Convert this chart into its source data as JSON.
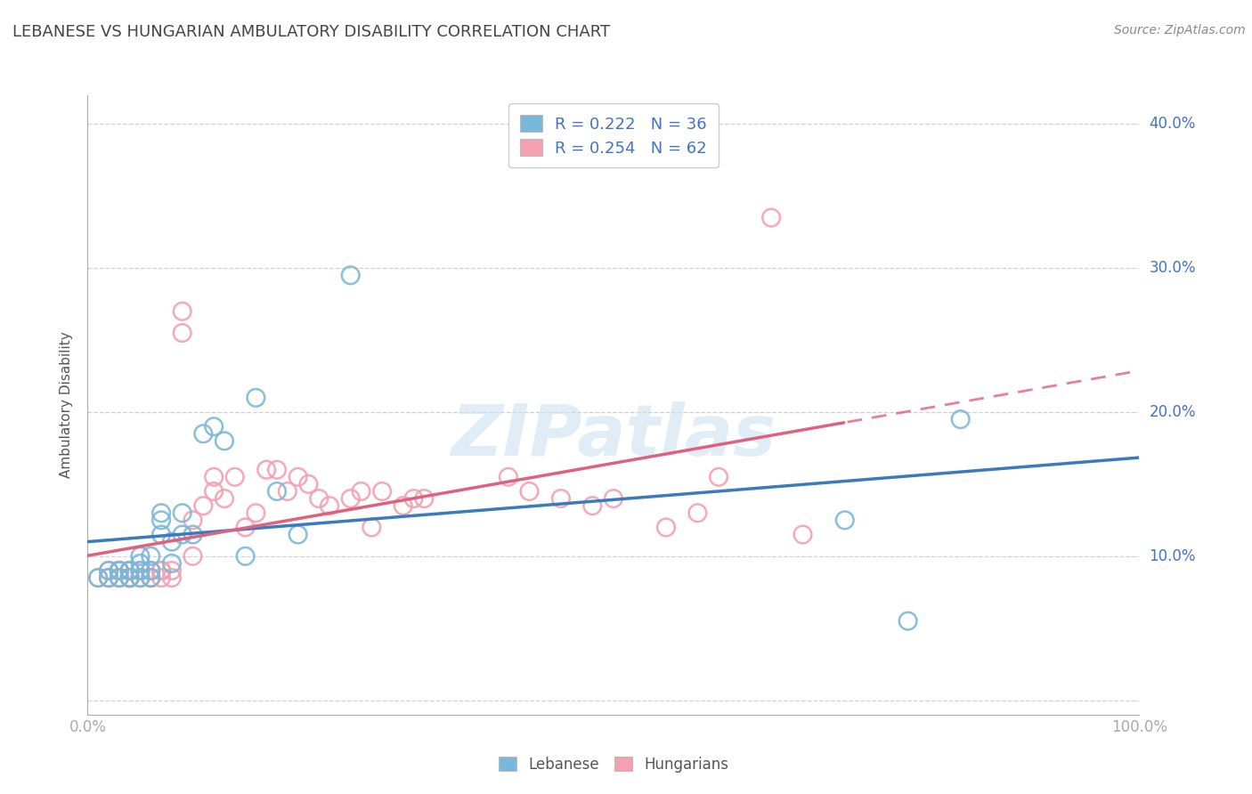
{
  "title": "LEBANESE VS HUNGARIAN AMBULATORY DISABILITY CORRELATION CHART",
  "source": "Source: ZipAtlas.com",
  "ylabel": "Ambulatory Disability",
  "legend_label1": "Lebanese",
  "legend_label2": "Hungarians",
  "legend_r1": "R = 0.222",
  "legend_n1": "N = 36",
  "legend_r2": "R = 0.254",
  "legend_n2": "N = 62",
  "color_lebanese": "#7ab8d9",
  "color_hungarian": "#f4a0b0",
  "color_lebanese_line": "#3a7abf",
  "color_hungarian_line": "#e06080",
  "watermark_color": "#c8dff0",
  "xlim": [
    0.0,
    1.0
  ],
  "ylim": [
    -0.01,
    0.42
  ],
  "lebanese_x": [
    0.01,
    0.02,
    0.02,
    0.03,
    0.03,
    0.03,
    0.04,
    0.04,
    0.04,
    0.04,
    0.05,
    0.05,
    0.05,
    0.05,
    0.06,
    0.06,
    0.06,
    0.07,
    0.07,
    0.07,
    0.08,
    0.08,
    0.09,
    0.09,
    0.1,
    0.11,
    0.12,
    0.13,
    0.15,
    0.16,
    0.18,
    0.2,
    0.25,
    0.72,
    0.78,
    0.83
  ],
  "lebanese_y": [
    0.085,
    0.09,
    0.085,
    0.09,
    0.085,
    0.09,
    0.085,
    0.09,
    0.085,
    0.09,
    0.095,
    0.085,
    0.09,
    0.1,
    0.085,
    0.09,
    0.1,
    0.115,
    0.125,
    0.13,
    0.095,
    0.11,
    0.115,
    0.13,
    0.115,
    0.185,
    0.19,
    0.18,
    0.1,
    0.21,
    0.145,
    0.115,
    0.295,
    0.125,
    0.055,
    0.195
  ],
  "hungarian_x": [
    0.01,
    0.02,
    0.02,
    0.02,
    0.03,
    0.03,
    0.03,
    0.03,
    0.04,
    0.04,
    0.04,
    0.04,
    0.04,
    0.05,
    0.05,
    0.05,
    0.05,
    0.06,
    0.06,
    0.06,
    0.06,
    0.07,
    0.07,
    0.07,
    0.07,
    0.08,
    0.08,
    0.09,
    0.09,
    0.1,
    0.1,
    0.11,
    0.12,
    0.12,
    0.13,
    0.14,
    0.15,
    0.16,
    0.17,
    0.18,
    0.19,
    0.2,
    0.21,
    0.22,
    0.23,
    0.25,
    0.26,
    0.27,
    0.28,
    0.3,
    0.31,
    0.32,
    0.4,
    0.42,
    0.45,
    0.48,
    0.5,
    0.55,
    0.58,
    0.6,
    0.65,
    0.68
  ],
  "hungarian_y": [
    0.085,
    0.085,
    0.09,
    0.085,
    0.085,
    0.09,
    0.085,
    0.09,
    0.085,
    0.09,
    0.085,
    0.09,
    0.085,
    0.09,
    0.085,
    0.09,
    0.085,
    0.09,
    0.085,
    0.09,
    0.085,
    0.09,
    0.085,
    0.09,
    0.09,
    0.085,
    0.09,
    0.27,
    0.255,
    0.1,
    0.125,
    0.135,
    0.155,
    0.145,
    0.14,
    0.155,
    0.12,
    0.13,
    0.16,
    0.16,
    0.145,
    0.155,
    0.15,
    0.14,
    0.135,
    0.14,
    0.145,
    0.12,
    0.145,
    0.135,
    0.14,
    0.14,
    0.155,
    0.145,
    0.14,
    0.135,
    0.14,
    0.12,
    0.13,
    0.155,
    0.335,
    0.115
  ]
}
